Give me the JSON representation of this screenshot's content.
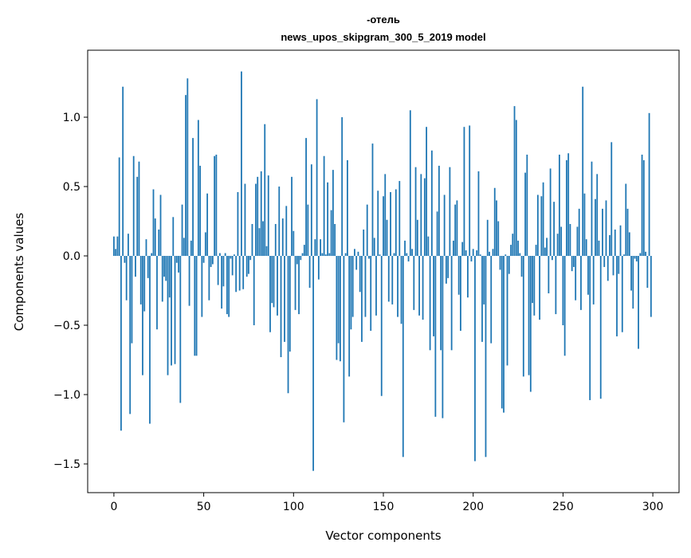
{
  "chart_data": {
    "type": "bar",
    "title_lines": [
      "-отель",
      "news_upos_skipgram_300_5_2019 model"
    ],
    "xlabel": "Vector components",
    "ylabel": "Components values",
    "xlim": [
      -14.6,
      314.6
    ],
    "ylim": [
      -1.707,
      1.483
    ],
    "xticks": [
      0,
      50,
      100,
      150,
      200,
      250,
      300
    ],
    "xtick_labels": [
      "0",
      "50",
      "100",
      "150",
      "200",
      "250",
      "300"
    ],
    "yticks": [
      -1.5,
      -1.0,
      -0.5,
      0.0,
      0.5,
      1.0
    ],
    "ytick_labels": [
      "−1.5",
      "−1.0",
      "−0.5",
      "0.0",
      "0.5",
      "1.0"
    ],
    "grid": false,
    "bar_color": "#1f77b4",
    "values": [
      0.14,
      0.05,
      0.14,
      0.71,
      -1.26,
      1.22,
      -0.05,
      -0.32,
      0.16,
      -1.14,
      -0.63,
      0.72,
      -0.15,
      0.57,
      0.68,
      -0.35,
      -0.86,
      -0.4,
      0.12,
      -0.16,
      -1.21,
      0.02,
      0.48,
      0.27,
      -0.53,
      0.19,
      0.44,
      -0.33,
      -0.15,
      -0.18,
      -0.86,
      -0.3,
      -0.79,
      0.28,
      -0.78,
      -0.05,
      -0.12,
      -1.06,
      0.37,
      0.13,
      1.16,
      1.28,
      -0.36,
      0.11,
      0.85,
      -0.72,
      -0.72,
      0.98,
      0.65,
      -0.44,
      -0.05,
      0.17,
      0.45,
      -0.32,
      -0.08,
      -0.06,
      0.72,
      0.73,
      -0.21,
      0.02,
      -0.38,
      -0.22,
      0.02,
      -0.42,
      -0.44,
      -0.02,
      -0.14,
      0.01,
      -0.26,
      0.46,
      -0.25,
      1.33,
      -0.24,
      0.52,
      -0.15,
      -0.13,
      -0.03,
      0.23,
      -0.5,
      0.52,
      0.57,
      0.2,
      0.61,
      0.25,
      0.95,
      0.07,
      0.58,
      -0.55,
      -0.34,
      -0.37,
      0.23,
      -0.43,
      0.5,
      -0.73,
      0.27,
      -0.62,
      0.36,
      -0.99,
      -0.69,
      0.57,
      0.18,
      -0.39,
      -0.06,
      -0.42,
      -0.03,
      0.02,
      0.08,
      0.85,
      0.37,
      -0.23,
      0.66,
      -1.55,
      0.12,
      1.13,
      -0.17,
      0.12,
      0.02,
      0.72,
      0.01,
      0.53,
      0.02,
      0.33,
      0.62,
      0.23,
      -0.75,
      -0.63,
      -0.76,
      1.0,
      -1.2,
      0.02,
      0.69,
      -0.87,
      -0.53,
      -0.44,
      0.05,
      -0.1,
      0.03,
      -0.26,
      -0.62,
      0.19,
      -0.44,
      0.37,
      -0.02,
      -0.54,
      0.81,
      0.13,
      -0.43,
      0.47,
      0.01,
      -1.01,
      0.43,
      0.59,
      0.26,
      -0.33,
      0.46,
      -0.35,
      0.02,
      0.48,
      -0.44,
      0.54,
      -0.49,
      -1.45,
      0.11,
      0.02,
      -0.04,
      1.05,
      0.05,
      -0.39,
      0.64,
      0.26,
      -0.43,
      0.59,
      -0.46,
      0.56,
      0.93,
      0.14,
      -0.68,
      0.76,
      -0.58,
      -1.16,
      0.32,
      0.65,
      -0.68,
      -1.17,
      0.44,
      -0.2,
      -0.16,
      0.64,
      -0.68,
      0.11,
      0.37,
      0.4,
      -0.28,
      -0.54,
      0.1,
      0.93,
      0.04,
      -0.3,
      0.94,
      -0.04,
      0.05,
      -1.48,
      0.04,
      0.61,
      0.01,
      -0.62,
      -0.35,
      -1.45,
      0.26,
      0.03,
      -0.63,
      0.05,
      0.49,
      0.4,
      0.25,
      -0.1,
      -1.1,
      -1.13,
      0.01,
      -0.79,
      -0.13,
      0.08,
      0.16,
      1.08,
      0.98,
      0.11,
      0.02,
      -0.15,
      -0.87,
      0.6,
      0.73,
      -0.86,
      -0.98,
      -0.34,
      -0.43,
      0.08,
      0.44,
      -0.46,
      0.43,
      0.53,
      0.06,
      0.13,
      -0.27,
      0.63,
      -0.03,
      0.39,
      -0.42,
      0.16,
      0.73,
      0.21,
      -0.5,
      -0.72,
      0.69,
      0.74,
      0.23,
      -0.11,
      -0.08,
      -0.32,
      0.21,
      0.34,
      -0.39,
      1.22,
      0.45,
      0.12,
      -0.28,
      -1.04,
      0.68,
      -0.35,
      0.41,
      0.59,
      0.11,
      -1.03,
      0.34,
      -0.08,
      0.4,
      -0.18,
      0.15,
      0.82,
      -0.14,
      0.19,
      -0.58,
      -0.13,
      0.22,
      -0.55,
      0.01,
      0.52,
      0.34,
      0.17,
      -0.25,
      -0.38,
      -0.02,
      -0.04,
      -0.67,
      0.02,
      0.73,
      0.69,
      0.03,
      -0.23,
      1.03,
      -0.44
    ]
  }
}
